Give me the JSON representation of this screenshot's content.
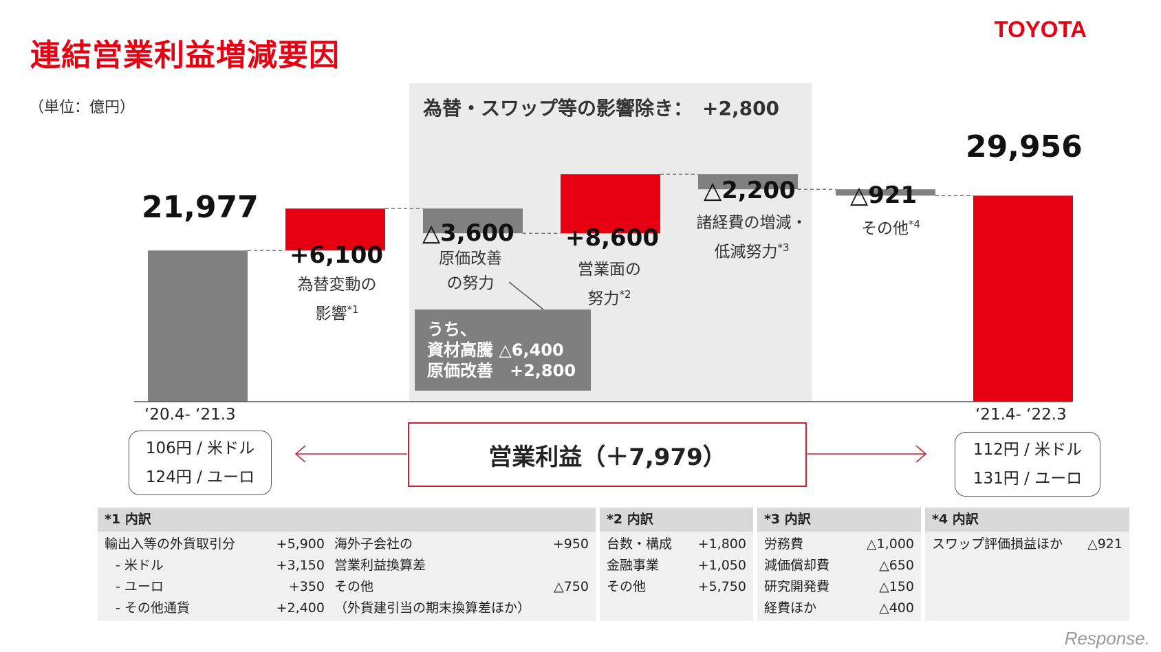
{
  "title": "連結営業利益増減要因",
  "logo": "TOYOTA",
  "unit": "（単位：億円）",
  "excl_label": "為替・スワップ等の影響除き：　+2,800",
  "chart_data": {
    "type": "waterfall",
    "start": {
      "label": "‘20.4- ‘21.3",
      "value": 21977,
      "value_label": "21,977"
    },
    "end": {
      "label": "‘21.4- ‘22.3",
      "value": 29956,
      "value_label": "29,956"
    },
    "steps": [
      {
        "value": 6100,
        "value_label": "+6,100",
        "desc": [
          "為替変動の",
          "影響"
        ],
        "note": "*1",
        "color": "#e60012"
      },
      {
        "value": -3600,
        "value_label": "△3,600",
        "desc": [
          "原価改善",
          "の努力"
        ],
        "note": "",
        "color": "#808080"
      },
      {
        "value": 8600,
        "value_label": "+8,600",
        "desc": [
          "営業面の",
          "努力"
        ],
        "note": "*2",
        "color": "#e60012"
      },
      {
        "value": -2200,
        "value_label": "△2,200",
        "desc": [
          "諸経費の増減・",
          "低減努力"
        ],
        "note": "*3",
        "color": "#808080"
      },
      {
        "value": -921,
        "value_label": "△921",
        "desc": [
          "その他"
        ],
        "note": "*4",
        "color": "#808080"
      }
    ],
    "callout": [
      "うち、",
      "資材高騰 △6,400",
      "原価改善　+2,800"
    ],
    "colors": {
      "gray": "#808080",
      "red": "#e60012"
    }
  },
  "rates_start": [
    "106円 / 米ドル",
    "124円 / ユーロ"
  ],
  "rates_end": [
    "112円 / 米ドル",
    "131円 / ユーロ"
  ],
  "operating_profit": "営業利益（＋7,979）",
  "tables": {
    "t1": {
      "head": "*1 内訳",
      "left": [
        [
          "輸出入等の外貨取引分",
          "+5,900"
        ],
        [
          "- 米ドル",
          "+3,150"
        ],
        [
          "- ユーロ",
          "+350"
        ],
        [
          "- その他通貨",
          "+2,400"
        ]
      ],
      "right": [
        [
          "海外子会社の",
          "+950"
        ],
        [
          "営業利益換算差",
          ""
        ],
        [
          "その他",
          "△750"
        ],
        [
          "（外貨建引当の期末換算差ほか）",
          ""
        ]
      ]
    },
    "t2": {
      "head": "*2 内訳",
      "rows": [
        [
          "台数・構成",
          "+1,800"
        ],
        [
          "金融事業",
          "+1,050"
        ],
        [
          "その他",
          "+5,750"
        ]
      ]
    },
    "t3": {
      "head": "*3 内訳",
      "rows": [
        [
          "労務費",
          "△1,000"
        ],
        [
          "減価償却費",
          "△650"
        ],
        [
          "研究開発費",
          "△150"
        ],
        [
          "経費ほか",
          "△400"
        ]
      ]
    },
    "t4": {
      "head": "*4 内訳",
      "rows": [
        [
          "スワップ評価損益ほか",
          "△921"
        ]
      ]
    }
  },
  "watermark": "Response."
}
